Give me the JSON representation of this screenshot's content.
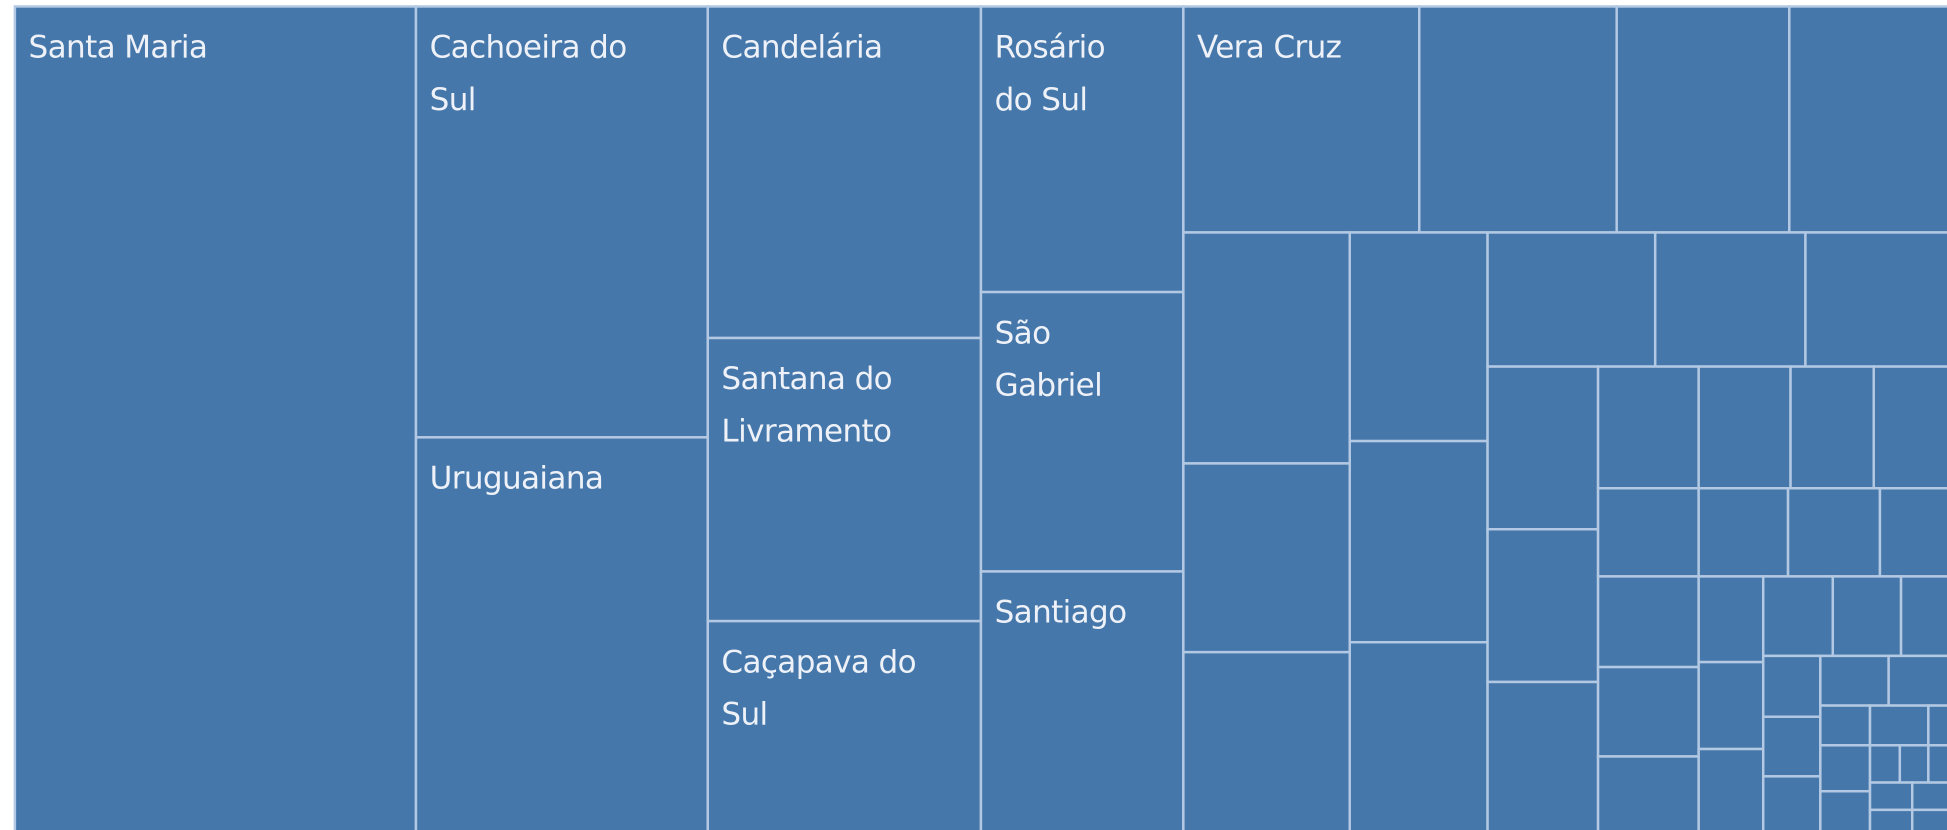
{
  "tiles": [
    {
      "label": [
        "Santa Maria"
      ]
    },
    {
      "label": [
        "Cachoeira do",
        "Sul"
      ]
    },
    {
      "label": [
        "Uruguaiana"
      ]
    },
    {
      "label": [
        "Candelária"
      ]
    },
    {
      "label": [
        "Santana do",
        "Livramento"
      ]
    },
    {
      "label": [
        "Caçapava do",
        "Sul"
      ]
    },
    {
      "label": [
        "Rosário",
        "do Sul"
      ]
    },
    {
      "label": [
        "São",
        "Gabriel"
      ]
    },
    {
      "label": [
        "Santiago"
      ]
    },
    {
      "label": [
        "Vera Cruz"
      ]
    }
  ]
}
